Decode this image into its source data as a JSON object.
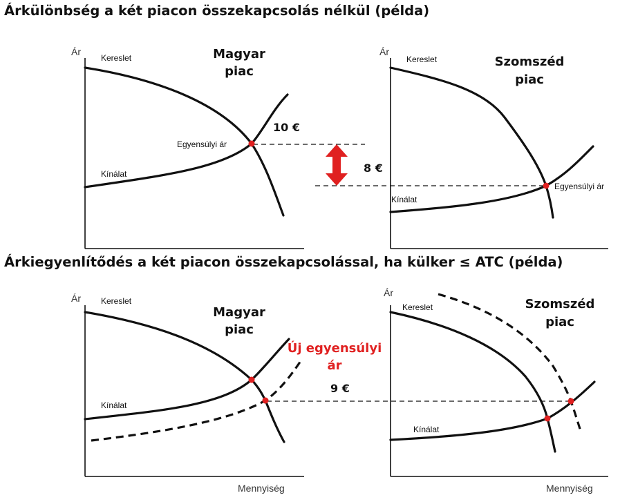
{
  "titles": {
    "top": "Árkülönbség a két piacon összekapcsolás nélkül (példa)",
    "bottom": "Árkiegyenlítődés a két piacon összekapcsolással, ha külker ≤ ATC (példa)"
  },
  "axes": {
    "price": "Ár",
    "quantity": "Mennyiség"
  },
  "curves": {
    "demand": "Kereslet",
    "supply": "Kínálat"
  },
  "markets": {
    "hu_line1": "Magyar",
    "hu_line2": "piac",
    "nb_line1": "Szomszéd",
    "nb_line2": "piac"
  },
  "equilibrium_label": "Egyensúlyi ár",
  "new_equilibrium": {
    "line1": "Új egyensúlyi",
    "line2": "ár"
  },
  "prices": {
    "hu": "10 €",
    "nb": "8 €",
    "new": "9 €"
  },
  "colors": {
    "marker": "#e02020",
    "arrow": "#e02020",
    "highlight": "#e02020"
  }
}
